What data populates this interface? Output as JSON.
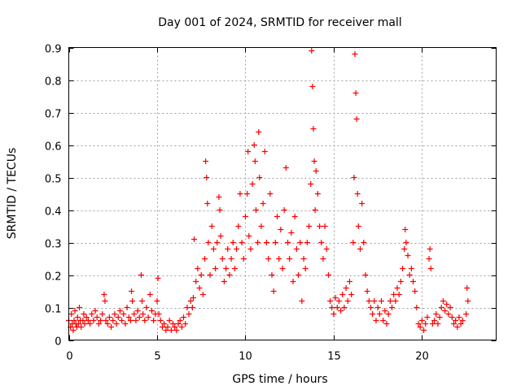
{
  "chart_data": {
    "type": "scatter",
    "title": "Day 001 of 2024, SRMTID for receiver mall",
    "xlabel": "GPS time / hours",
    "ylabel": "SRMTID / TECUs",
    "xlim": [
      0,
      24.2
    ],
    "ylim": [
      0,
      0.9
    ],
    "grid": true,
    "marker": "+",
    "marker_color": "#ff0000",
    "xticks": [
      0,
      5,
      10,
      15,
      20
    ],
    "xtick_labels": [
      "0",
      "5",
      "10",
      "15",
      "20"
    ],
    "yticks": [
      0,
      0.1,
      0.2,
      0.3,
      0.4,
      0.5,
      0.6,
      0.7,
      0.8,
      0.9
    ],
    "ytick_labels": [
      "0",
      "0.1",
      "0.2",
      "0.3",
      "0.4",
      "0.5",
      "0.6",
      "0.7",
      "0.8",
      "0.9"
    ],
    "series": [
      {
        "name": "SRMTID",
        "points": [
          [
            0.0,
            0.06
          ],
          [
            0.1,
            0.04
          ],
          [
            0.15,
            0.08
          ],
          [
            0.2,
            0.05
          ],
          [
            0.25,
            0.03
          ],
          [
            0.3,
            0.06
          ],
          [
            0.35,
            0.09
          ],
          [
            0.4,
            0.05
          ],
          [
            0.45,
            0.04
          ],
          [
            0.5,
            0.07
          ],
          [
            0.55,
            0.05
          ],
          [
            0.6,
            0.1
          ],
          [
            0.65,
            0.06
          ],
          [
            0.7,
            0.04
          ],
          [
            0.8,
            0.06
          ],
          [
            0.85,
            0.08
          ],
          [
            0.9,
            0.05
          ],
          [
            1.0,
            0.07
          ],
          [
            1.1,
            0.06
          ],
          [
            1.2,
            0.05
          ],
          [
            1.3,
            0.08
          ],
          [
            1.4,
            0.06
          ],
          [
            1.5,
            0.09
          ],
          [
            1.6,
            0.07
          ],
          [
            1.7,
            0.05
          ],
          [
            1.8,
            0.06
          ],
          [
            1.9,
            0.08
          ],
          [
            2.0,
            0.14
          ],
          [
            2.05,
            0.12
          ],
          [
            2.1,
            0.06
          ],
          [
            2.2,
            0.05
          ],
          [
            2.3,
            0.07
          ],
          [
            2.4,
            0.04
          ],
          [
            2.5,
            0.06
          ],
          [
            2.6,
            0.08
          ],
          [
            2.7,
            0.05
          ],
          [
            2.8,
            0.07
          ],
          [
            2.9,
            0.09
          ],
          [
            3.0,
            0.06
          ],
          [
            3.1,
            0.08
          ],
          [
            3.2,
            0.05
          ],
          [
            3.3,
            0.1
          ],
          [
            3.4,
            0.07
          ],
          [
            3.5,
            0.06
          ],
          [
            3.55,
            0.15
          ],
          [
            3.6,
            0.12
          ],
          [
            3.7,
            0.08
          ],
          [
            3.8,
            0.06
          ],
          [
            3.9,
            0.09
          ],
          [
            4.0,
            0.07
          ],
          [
            4.1,
            0.2
          ],
          [
            4.15,
            0.12
          ],
          [
            4.2,
            0.08
          ],
          [
            4.3,
            0.06
          ],
          [
            4.4,
            0.1
          ],
          [
            4.5,
            0.07
          ],
          [
            4.6,
            0.14
          ],
          [
            4.7,
            0.09
          ],
          [
            4.8,
            0.06
          ],
          [
            4.9,
            0.08
          ],
          [
            5.0,
            0.12
          ],
          [
            5.05,
            0.19
          ],
          [
            5.1,
            0.08
          ],
          [
            5.2,
            0.06
          ],
          [
            5.3,
            0.04
          ],
          [
            5.4,
            0.05
          ],
          [
            5.5,
            0.03
          ],
          [
            5.6,
            0.04
          ],
          [
            5.7,
            0.06
          ],
          [
            5.8,
            0.03
          ],
          [
            5.9,
            0.05
          ],
          [
            6.0,
            0.04
          ],
          [
            6.1,
            0.03
          ],
          [
            6.2,
            0.05
          ],
          [
            6.3,
            0.06
          ],
          [
            6.4,
            0.04
          ],
          [
            6.5,
            0.07
          ],
          [
            6.6,
            0.05
          ],
          [
            6.7,
            0.1
          ],
          [
            6.8,
            0.08
          ],
          [
            6.9,
            0.12
          ],
          [
            7.0,
            0.1
          ],
          [
            7.05,
            0.13
          ],
          [
            7.1,
            0.31
          ],
          [
            7.2,
            0.18
          ],
          [
            7.3,
            0.22
          ],
          [
            7.4,
            0.16
          ],
          [
            7.5,
            0.2
          ],
          [
            7.6,
            0.14
          ],
          [
            7.7,
            0.25
          ],
          [
            7.75,
            0.55
          ],
          [
            7.8,
            0.5
          ],
          [
            7.85,
            0.42
          ],
          [
            7.9,
            0.3
          ],
          [
            8.0,
            0.2
          ],
          [
            8.1,
            0.35
          ],
          [
            8.2,
            0.28
          ],
          [
            8.3,
            0.22
          ],
          [
            8.4,
            0.3
          ],
          [
            8.5,
            0.44
          ],
          [
            8.55,
            0.4
          ],
          [
            8.6,
            0.32
          ],
          [
            8.7,
            0.25
          ],
          [
            8.8,
            0.18
          ],
          [
            8.9,
            0.22
          ],
          [
            9.0,
            0.28
          ],
          [
            9.1,
            0.2
          ],
          [
            9.2,
            0.25
          ],
          [
            9.3,
            0.3
          ],
          [
            9.4,
            0.22
          ],
          [
            9.5,
            0.28
          ],
          [
            9.6,
            0.35
          ],
          [
            9.7,
            0.45
          ],
          [
            9.8,
            0.3
          ],
          [
            9.9,
            0.25
          ],
          [
            10.0,
            0.38
          ],
          [
            10.1,
            0.45
          ],
          [
            10.15,
            0.58
          ],
          [
            10.2,
            0.32
          ],
          [
            10.3,
            0.28
          ],
          [
            10.4,
            0.48
          ],
          [
            10.5,
            0.6
          ],
          [
            10.55,
            0.55
          ],
          [
            10.6,
            0.4
          ],
          [
            10.7,
            0.3
          ],
          [
            10.75,
            0.64
          ],
          [
            10.8,
            0.5
          ],
          [
            10.9,
            0.35
          ],
          [
            11.0,
            0.42
          ],
          [
            11.1,
            0.58
          ],
          [
            11.2,
            0.3
          ],
          [
            11.3,
            0.25
          ],
          [
            11.4,
            0.45
          ],
          [
            11.5,
            0.2
          ],
          [
            11.6,
            0.15
          ],
          [
            11.7,
            0.3
          ],
          [
            11.8,
            0.38
          ],
          [
            11.9,
            0.25
          ],
          [
            12.0,
            0.34
          ],
          [
            12.1,
            0.22
          ],
          [
            12.2,
            0.4
          ],
          [
            12.3,
            0.53
          ],
          [
            12.4,
            0.3
          ],
          [
            12.5,
            0.25
          ],
          [
            12.6,
            0.33
          ],
          [
            12.7,
            0.18
          ],
          [
            12.8,
            0.38
          ],
          [
            12.9,
            0.28
          ],
          [
            13.0,
            0.2
          ],
          [
            13.1,
            0.3
          ],
          [
            13.2,
            0.12
          ],
          [
            13.3,
            0.25
          ],
          [
            13.4,
            0.22
          ],
          [
            13.5,
            0.3
          ],
          [
            13.6,
            0.35
          ],
          [
            13.7,
            0.48
          ],
          [
            13.75,
            0.89
          ],
          [
            13.8,
            0.78
          ],
          [
            13.85,
            0.65
          ],
          [
            13.9,
            0.55
          ],
          [
            13.95,
            0.4
          ],
          [
            14.0,
            0.52
          ],
          [
            14.1,
            0.45
          ],
          [
            14.2,
            0.35
          ],
          [
            14.3,
            0.3
          ],
          [
            14.4,
            0.25
          ],
          [
            14.5,
            0.35
          ],
          [
            14.6,
            0.28
          ],
          [
            14.7,
            0.2
          ],
          [
            14.8,
            0.12
          ],
          [
            14.9,
            0.1
          ],
          [
            15.0,
            0.08
          ],
          [
            15.1,
            0.13
          ],
          [
            15.2,
            0.1
          ],
          [
            15.3,
            0.12
          ],
          [
            15.4,
            0.09
          ],
          [
            15.5,
            0.14
          ],
          [
            15.6,
            0.1
          ],
          [
            15.7,
            0.16
          ],
          [
            15.8,
            0.12
          ],
          [
            15.9,
            0.18
          ],
          [
            16.0,
            0.14
          ],
          [
            16.1,
            0.3
          ],
          [
            16.15,
            0.5
          ],
          [
            16.2,
            0.88
          ],
          [
            16.25,
            0.76
          ],
          [
            16.3,
            0.68
          ],
          [
            16.35,
            0.45
          ],
          [
            16.4,
            0.35
          ],
          [
            16.5,
            0.28
          ],
          [
            16.6,
            0.42
          ],
          [
            16.7,
            0.3
          ],
          [
            16.8,
            0.2
          ],
          [
            16.9,
            0.15
          ],
          [
            17.0,
            0.12
          ],
          [
            17.1,
            0.1
          ],
          [
            17.2,
            0.08
          ],
          [
            17.3,
            0.12
          ],
          [
            17.4,
            0.06
          ],
          [
            17.5,
            0.1
          ],
          [
            17.6,
            0.08
          ],
          [
            17.7,
            0.12
          ],
          [
            17.8,
            0.06
          ],
          [
            17.9,
            0.09
          ],
          [
            18.0,
            0.05
          ],
          [
            18.1,
            0.08
          ],
          [
            18.2,
            0.12
          ],
          [
            18.3,
            0.1
          ],
          [
            18.4,
            0.14
          ],
          [
            18.5,
            0.12
          ],
          [
            18.6,
            0.16
          ],
          [
            18.7,
            0.14
          ],
          [
            18.8,
            0.18
          ],
          [
            18.9,
            0.22
          ],
          [
            19.0,
            0.28
          ],
          [
            19.05,
            0.34
          ],
          [
            19.1,
            0.3
          ],
          [
            19.2,
            0.26
          ],
          [
            19.3,
            0.2
          ],
          [
            19.4,
            0.22
          ],
          [
            19.5,
            0.18
          ],
          [
            19.6,
            0.15
          ],
          [
            19.7,
            0.1
          ],
          [
            19.8,
            0.05
          ],
          [
            19.9,
            0.04
          ],
          [
            20.0,
            0.06
          ],
          [
            20.1,
            0.03
          ],
          [
            20.2,
            0.05
          ],
          [
            20.3,
            0.07
          ],
          [
            20.4,
            0.25
          ],
          [
            20.45,
            0.28
          ],
          [
            20.5,
            0.22
          ],
          [
            20.6,
            0.05
          ],
          [
            20.7,
            0.06
          ],
          [
            20.8,
            0.08
          ],
          [
            20.9,
            0.05
          ],
          [
            21.0,
            0.07
          ],
          [
            21.1,
            0.1
          ],
          [
            21.2,
            0.12
          ],
          [
            21.3,
            0.09
          ],
          [
            21.4,
            0.11
          ],
          [
            21.5,
            0.08
          ],
          [
            21.6,
            0.1
          ],
          [
            21.7,
            0.07
          ],
          [
            21.8,
            0.05
          ],
          [
            21.9,
            0.06
          ],
          [
            22.0,
            0.04
          ],
          [
            22.1,
            0.07
          ],
          [
            22.2,
            0.05
          ],
          [
            22.3,
            0.06
          ],
          [
            22.5,
            0.08
          ],
          [
            22.55,
            0.16
          ],
          [
            22.6,
            0.12
          ]
        ]
      }
    ]
  }
}
